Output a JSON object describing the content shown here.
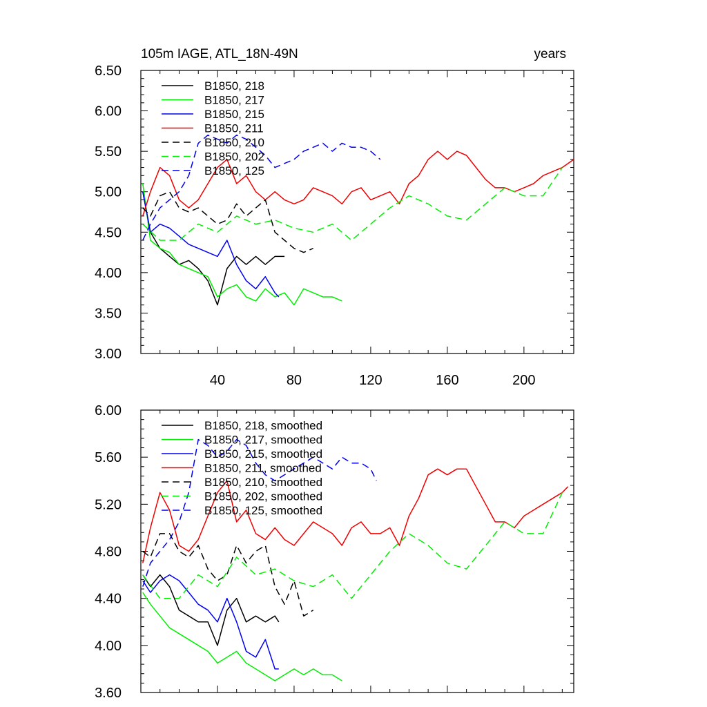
{
  "chart_data": [
    {
      "type": "line",
      "title": "105m IAGE, ATL_18N-49N",
      "title_right": "years",
      "xlim": [
        0,
        226
      ],
      "ylim": [
        3.0,
        6.5
      ],
      "xticks": [
        40,
        80,
        120,
        160,
        200
      ],
      "xtick_labels": [
        "40",
        "80",
        "120",
        "160",
        "200"
      ],
      "yticks": [
        3.0,
        3.5,
        4.0,
        4.5,
        5.0,
        5.5,
        6.0,
        6.5
      ],
      "ytick_labels": [
        "3.00",
        "3.50",
        "4.00",
        "4.50",
        "5.00",
        "5.50",
        "6.00",
        "6.50"
      ],
      "series": [
        {
          "name": "B1850, 218",
          "color": "#000000",
          "dash": "solid",
          "x": [
            1,
            5,
            10,
            15,
            20,
            25,
            30,
            35,
            40,
            45,
            50,
            55,
            60,
            65,
            70,
            75
          ],
          "y": [
            5.0,
            4.5,
            4.3,
            4.2,
            4.1,
            4.15,
            4.05,
            3.9,
            3.6,
            4.05,
            4.2,
            4.1,
            4.2,
            4.1,
            4.2,
            4.2
          ]
        },
        {
          "name": "B1850, 217",
          "color": "#00ee00",
          "dash": "solid",
          "x": [
            1,
            5,
            10,
            15,
            20,
            25,
            30,
            35,
            40,
            45,
            50,
            55,
            60,
            65,
            70,
            75,
            80,
            85,
            90,
            95,
            100,
            105
          ],
          "y": [
            5.1,
            4.4,
            4.3,
            4.25,
            4.1,
            4.05,
            4.0,
            3.95,
            3.7,
            3.8,
            3.85,
            3.7,
            3.65,
            3.8,
            3.7,
            3.75,
            3.6,
            3.8,
            3.75,
            3.7,
            3.7,
            3.65
          ]
        },
        {
          "name": "B1850, 215",
          "color": "#0000ee",
          "dash": "solid",
          "x": [
            1,
            5,
            10,
            15,
            20,
            25,
            30,
            35,
            40,
            45,
            50,
            55,
            60,
            65,
            70,
            72
          ],
          "y": [
            5.0,
            4.5,
            4.6,
            4.55,
            4.45,
            4.35,
            4.3,
            4.25,
            4.2,
            4.4,
            4.1,
            3.9,
            3.8,
            3.95,
            3.75,
            3.7
          ]
        },
        {
          "name": "B1850, 211",
          "color": "#ee0000",
          "dash": "solid",
          "x": [
            1,
            5,
            10,
            15,
            20,
            25,
            30,
            35,
            40,
            45,
            50,
            55,
            60,
            65,
            70,
            75,
            80,
            85,
            90,
            95,
            100,
            105,
            110,
            115,
            120,
            125,
            130,
            135,
            140,
            145,
            150,
            155,
            160,
            165,
            170,
            175,
            180,
            185,
            190,
            195,
            200,
            205,
            210,
            215,
            220,
            226
          ],
          "y": [
            4.7,
            5.0,
            5.3,
            5.2,
            4.9,
            4.8,
            4.9,
            5.1,
            5.3,
            5.4,
            5.1,
            5.2,
            5.0,
            4.9,
            5.0,
            4.9,
            4.85,
            4.9,
            5.05,
            5.0,
            4.95,
            4.85,
            5.0,
            5.05,
            4.9,
            4.95,
            5.0,
            4.85,
            5.1,
            5.2,
            5.4,
            5.5,
            5.4,
            5.5,
            5.45,
            5.3,
            5.15,
            5.05,
            5.05,
            5.0,
            5.05,
            5.1,
            5.2,
            5.25,
            5.3,
            5.4
          ]
        },
        {
          "name": "B1850, 210",
          "color": "#000000",
          "dash": "dashed",
          "x": [
            1,
            5,
            10,
            15,
            20,
            25,
            30,
            35,
            40,
            45,
            50,
            55,
            60,
            65,
            70,
            75,
            80,
            85,
            90
          ],
          "y": [
            4.8,
            4.7,
            4.95,
            5.0,
            4.8,
            4.75,
            4.8,
            4.7,
            4.6,
            4.65,
            4.85,
            4.7,
            4.8,
            4.9,
            4.5,
            4.4,
            4.3,
            4.25,
            4.3
          ]
        },
        {
          "name": "B1850, 202",
          "color": "#00ee00",
          "dash": "dashed",
          "x": [
            1,
            10,
            20,
            30,
            40,
            50,
            60,
            70,
            80,
            90,
            100,
            110,
            120,
            130,
            140,
            150,
            160,
            170,
            180,
            190,
            200,
            210,
            220
          ],
          "y": [
            4.6,
            4.4,
            4.4,
            4.6,
            4.5,
            4.7,
            4.6,
            4.65,
            4.55,
            4.5,
            4.6,
            4.4,
            4.6,
            4.8,
            4.95,
            4.85,
            4.7,
            4.65,
            4.85,
            5.05,
            4.95,
            4.95,
            5.3
          ]
        },
        {
          "name": "B1850, 125",
          "color": "#0000ee",
          "dash": "dashed",
          "x": [
            1,
            5,
            10,
            15,
            20,
            25,
            30,
            35,
            40,
            45,
            50,
            55,
            60,
            65,
            70,
            75,
            80,
            85,
            90,
            95,
            100,
            105,
            110,
            115,
            120,
            125
          ],
          "y": [
            4.4,
            4.6,
            4.8,
            4.9,
            5.0,
            5.2,
            5.6,
            5.7,
            5.65,
            5.6,
            5.7,
            5.65,
            5.55,
            5.45,
            5.3,
            5.35,
            5.4,
            5.5,
            5.55,
            5.6,
            5.5,
            5.6,
            5.55,
            5.55,
            5.5,
            5.4
          ]
        }
      ]
    },
    {
      "type": "line",
      "title": "",
      "xlim": [
        0,
        226
      ],
      "ylim": [
        3.6,
        6.0
      ],
      "xticks": [
        40,
        80,
        120,
        160,
        200
      ],
      "xtick_labels": [],
      "yticks": [
        3.6,
        4.0,
        4.4,
        4.8,
        5.2,
        5.6,
        6.0
      ],
      "ytick_labels": [
        "3.60",
        "4.00",
        "4.40",
        "4.80",
        "5.20",
        "5.60",
        "6.00"
      ],
      "series": [
        {
          "name": "B1850, 218, smoothed",
          "color": "#000000",
          "dash": "solid",
          "x": [
            1,
            5,
            10,
            15,
            20,
            25,
            30,
            35,
            40,
            45,
            50,
            55,
            60,
            65,
            70,
            72
          ],
          "y": [
            4.6,
            4.5,
            4.6,
            4.5,
            4.3,
            4.25,
            4.2,
            4.2,
            4.0,
            4.3,
            4.4,
            4.2,
            4.25,
            4.2,
            4.25,
            4.2
          ]
        },
        {
          "name": "B1850, 217, smoothed",
          "color": "#00ee00",
          "dash": "solid",
          "x": [
            1,
            5,
            10,
            15,
            20,
            25,
            30,
            35,
            40,
            45,
            50,
            55,
            60,
            65,
            70,
            75,
            80,
            85,
            90,
            95,
            100,
            105
          ],
          "y": [
            4.45,
            4.35,
            4.25,
            4.15,
            4.1,
            4.05,
            4.0,
            3.95,
            3.85,
            3.9,
            3.95,
            3.85,
            3.8,
            3.75,
            3.7,
            3.75,
            3.8,
            3.75,
            3.8,
            3.75,
            3.75,
            3.7
          ]
        },
        {
          "name": "B1850, 215, smoothed",
          "color": "#0000ee",
          "dash": "solid",
          "x": [
            1,
            5,
            10,
            15,
            20,
            25,
            30,
            35,
            40,
            45,
            50,
            55,
            60,
            65,
            70,
            72
          ],
          "y": [
            4.55,
            4.45,
            4.55,
            4.6,
            4.55,
            4.45,
            4.35,
            4.3,
            4.2,
            4.4,
            4.2,
            3.95,
            3.9,
            4.05,
            3.8,
            3.8
          ]
        },
        {
          "name": "B1850, 211, smoothed",
          "color": "#ee0000",
          "dash": "solid",
          "x": [
            1,
            5,
            10,
            15,
            20,
            25,
            30,
            35,
            40,
            45,
            50,
            55,
            60,
            65,
            70,
            75,
            80,
            85,
            90,
            95,
            100,
            105,
            110,
            115,
            120,
            125,
            130,
            135,
            140,
            145,
            150,
            155,
            160,
            165,
            170,
            175,
            180,
            185,
            190,
            195,
            200,
            205,
            210,
            215,
            220,
            223
          ],
          "y": [
            4.7,
            5.0,
            5.3,
            5.15,
            4.85,
            4.8,
            4.9,
            5.1,
            5.3,
            5.4,
            5.05,
            5.15,
            4.95,
            4.9,
            5.0,
            4.9,
            4.85,
            4.95,
            5.05,
            5.0,
            4.95,
            4.85,
            5.0,
            5.05,
            4.95,
            4.95,
            5.0,
            4.85,
            5.1,
            5.25,
            5.45,
            5.5,
            5.45,
            5.5,
            5.5,
            5.35,
            5.2,
            5.05,
            5.05,
            5.0,
            5.1,
            5.15,
            5.2,
            5.25,
            5.3,
            5.35
          ]
        },
        {
          "name": "B1850, 210, smoothed",
          "color": "#000000",
          "dash": "dashed",
          "x": [
            1,
            5,
            10,
            15,
            20,
            25,
            30,
            35,
            40,
            45,
            50,
            55,
            60,
            65,
            70,
            75,
            80,
            85,
            90
          ],
          "y": [
            4.8,
            4.75,
            4.95,
            4.95,
            4.8,
            4.75,
            4.85,
            4.65,
            4.55,
            4.6,
            4.85,
            4.7,
            4.8,
            4.85,
            4.5,
            4.35,
            4.55,
            4.25,
            4.3
          ]
        },
        {
          "name": "B1850, 202, smoothed",
          "color": "#00ee00",
          "dash": "dashed",
          "x": [
            1,
            10,
            20,
            30,
            40,
            50,
            60,
            70,
            80,
            90,
            100,
            110,
            120,
            130,
            140,
            150,
            160,
            170,
            180,
            190,
            200,
            210,
            220
          ],
          "y": [
            4.6,
            4.4,
            4.4,
            4.6,
            4.5,
            4.75,
            4.6,
            4.65,
            4.55,
            4.5,
            4.6,
            4.4,
            4.6,
            4.8,
            4.95,
            4.85,
            4.7,
            4.65,
            4.85,
            5.05,
            4.95,
            4.95,
            5.3
          ]
        },
        {
          "name": "B1850, 125, smoothed",
          "color": "#0000ee",
          "dash": "dashed",
          "x": [
            1,
            5,
            10,
            15,
            20,
            25,
            30,
            35,
            40,
            45,
            50,
            55,
            60,
            65,
            70,
            75,
            80,
            85,
            90,
            95,
            100,
            105,
            110,
            115,
            120,
            123
          ],
          "y": [
            4.5,
            4.7,
            4.8,
            4.9,
            5.05,
            5.3,
            5.75,
            5.7,
            5.6,
            5.65,
            5.75,
            5.7,
            5.55,
            5.45,
            5.4,
            5.45,
            5.5,
            5.55,
            5.6,
            5.55,
            5.5,
            5.6,
            5.55,
            5.55,
            5.5,
            5.4
          ]
        }
      ]
    }
  ]
}
